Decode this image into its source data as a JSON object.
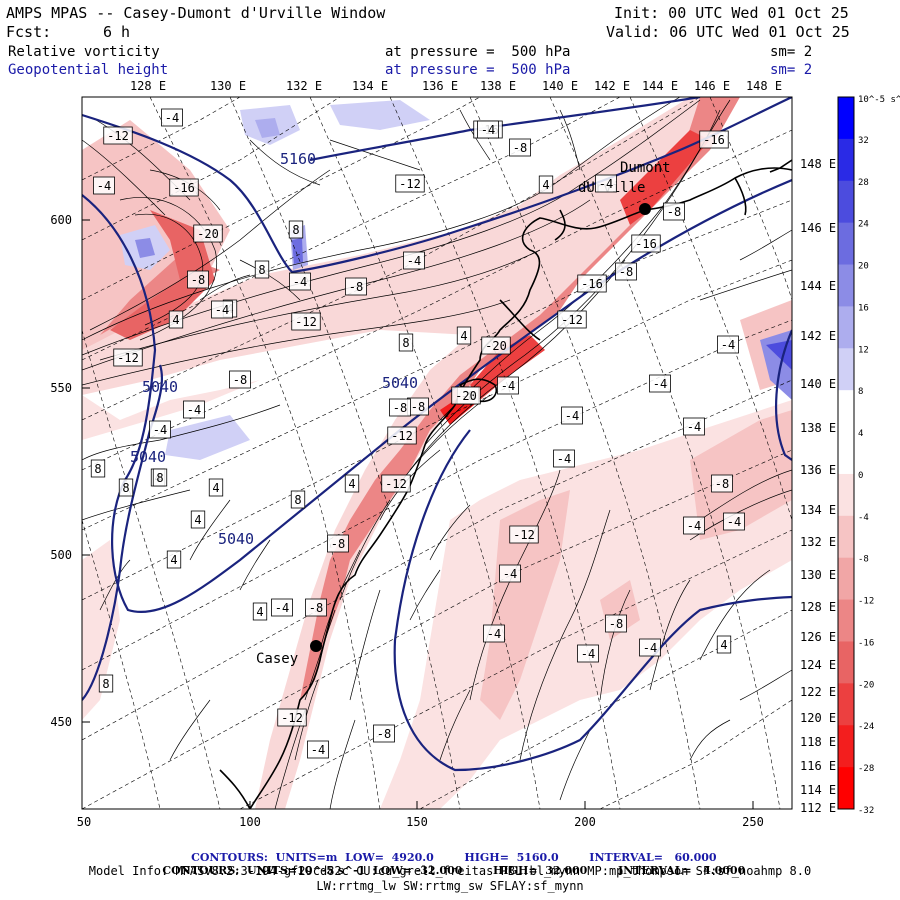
{
  "header": {
    "title": "AMPS MPAS -- Casey-Dumont d'Urville Window",
    "init": "Init: 00 UTC Wed 01 Oct 25",
    "fcst_label": "Fcst:",
    "fcst_value": "6 h",
    "valid": "Valid: 06 UTC Wed 01 Oct 25",
    "field1_name": "Relative vorticity",
    "field1_level": "at pressure =  500 hPa",
    "field1_sm": "sm= 2",
    "field2_name": "Geopotential height",
    "field2_level": "at pressure =  500 hPa",
    "field2_sm": "sm= 2"
  },
  "top_lon_labels": [
    "128 E",
    "130 E",
    "132 E",
    "134 E",
    "136 E",
    "138 E",
    "140 E",
    "142 E",
    "144 E",
    "146 E",
    "148 E"
  ],
  "left_axis_labels": [
    "600",
    "550",
    "500",
    "450"
  ],
  "bottom_axis_labels": [
    "50",
    "100",
    "150",
    "200",
    "250"
  ],
  "right_lat_labels": [
    "148 E",
    "146 E",
    "144 E",
    "142 E",
    "140 E",
    "138 E",
    "136 E",
    "134 E",
    "132 E",
    "130 E",
    "128 E",
    "126 E",
    "124 E",
    "122 E",
    "120 E",
    "118 E",
    "116 E",
    "114 E",
    "112 E"
  ],
  "colorbar": {
    "top_label": "10^-5 s^-1",
    "ticks": [
      "32",
      "28",
      "24",
      "20",
      "16",
      "12",
      "8",
      "4",
      "0",
      "-4",
      "-8",
      "-12",
      "-16",
      "-20",
      "-24",
      "-28",
      "-32"
    ],
    "colors": [
      "#0000ff",
      "#2a2ae6",
      "#4c4cde",
      "#6c6ce0",
      "#8c8ce6",
      "#adadee",
      "#d0d0f6",
      "#ffffff",
      "#ffffff",
      "#fbe2e2",
      "#f6c4c4",
      "#f1a6a6",
      "#ec8686",
      "#e86464",
      "#ec4040",
      "#f31e1e",
      "#ff0000"
    ]
  },
  "places": [
    {
      "name": "Dumont d'Urville",
      "line1": "Dumont",
      "line2": "dUrville"
    },
    {
      "name": "Casey",
      "line1": "Casey"
    }
  ],
  "contour_labels_height": [
    "5160",
    "5040",
    "5040",
    "5040",
    "5040"
  ],
  "vorticity_labels": [
    "-12",
    "-4",
    "-20",
    "-16",
    "-8",
    "4",
    "8",
    "-4",
    "-12",
    "-16",
    "-8",
    "-4",
    "4",
    "8",
    "-8",
    "-12",
    "-20",
    "-4",
    "-16",
    "-12",
    "4",
    "8",
    "-4",
    "-8",
    "-12",
    "-4",
    "4",
    "-4",
    "-12",
    "-16",
    "-8",
    "-4",
    "-8",
    "-8",
    "-4",
    "-4",
    "4",
    "8",
    "-8",
    "-4",
    "-12",
    "-4",
    "8",
    "4",
    "-4",
    "-8",
    "-4",
    "-4",
    "-4",
    "-4",
    "-8",
    "-4",
    "-4",
    "-8",
    "-4",
    "4",
    "4",
    "-4",
    "-12",
    "-8",
    "4",
    "8",
    "-12",
    "4",
    "4",
    "8",
    "-8",
    "-16",
    "-8",
    "-20",
    "-4",
    "-4",
    "8"
  ],
  "footer": {
    "line1_label": "CONTOURS:",
    "line1": "UNITS=m  LOW=  4920.0        HIGH=  5160.0        INTERVAL=   60.000",
    "line2": "UNITS=10^-5 s^-1  LOW= -32.000        HIGH=  32.000        INTERVAL=   4.0000",
    "line3": "Model Info: MPASv8.2.3-194-gf29cd82c CU:cu_grell_freitas PBL:bl_mynn MP:mp_thompson SF:sf_noahmp 8.0",
    "line4": "LW:rrtmg_lw SW:rrtmg_sw SFLAY:sf_mynn"
  }
}
